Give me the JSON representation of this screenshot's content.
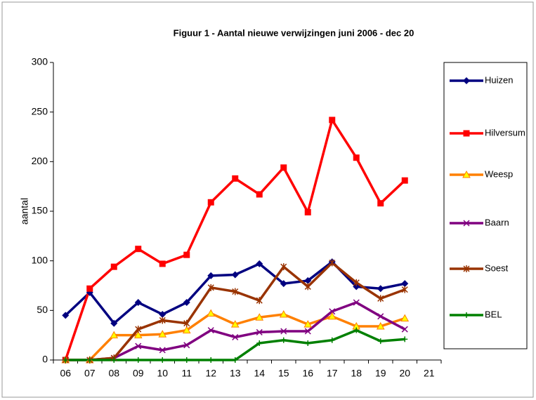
{
  "chart_data": {
    "type": "line",
    "title": "Figuur 1 - Aantal nieuwe verwijzingen juni 2006  - dec 20",
    "y_label": "aantal",
    "categories": [
      "06",
      "07",
      "08",
      "09",
      "10",
      "11",
      "12",
      "13",
      "14",
      "15",
      "16",
      "17",
      "18",
      "19",
      "20",
      "21"
    ],
    "ylim": [
      0,
      300
    ],
    "yticks": [
      0,
      50,
      100,
      150,
      200,
      250,
      300
    ],
    "grid": false,
    "legend": "right",
    "series": [
      {
        "name": "Huizen",
        "color": "#000080",
        "marker": "diamond",
        "values": [
          45,
          68,
          37,
          58,
          46,
          58,
          85,
          86,
          97,
          77,
          80,
          99,
          74,
          72,
          77,
          null
        ]
      },
      {
        "name": "Hilversum",
        "color": "#ff0000",
        "marker": "square",
        "values": [
          0,
          72,
          94,
          112,
          97,
          106,
          159,
          183,
          167,
          194,
          149,
          242,
          204,
          158,
          181,
          null
        ]
      },
      {
        "name": "Weesp",
        "color": "#ff8000",
        "marker": "triangle",
        "values": [
          0,
          0,
          25,
          25,
          26,
          30,
          47,
          36,
          43,
          46,
          36,
          44,
          34,
          34,
          42,
          null
        ]
      },
      {
        "name": "Baarn",
        "color": "#800080",
        "marker": "cross",
        "values": [
          0,
          0,
          2,
          14,
          10,
          15,
          30,
          23,
          28,
          29,
          29,
          49,
          58,
          44,
          31,
          null
        ]
      },
      {
        "name": "Soest",
        "color": "#993300",
        "marker": "star",
        "values": [
          0,
          0,
          2,
          31,
          40,
          37,
          73,
          69,
          60,
          94,
          74,
          98,
          78,
          62,
          71,
          null
        ]
      },
      {
        "name": "BEL",
        "color": "#008000",
        "marker": "plus",
        "values": [
          0,
          0,
          0,
          0,
          0,
          0,
          0,
          0,
          17,
          20,
          17,
          20,
          30,
          19,
          21,
          null
        ]
      }
    ]
  }
}
